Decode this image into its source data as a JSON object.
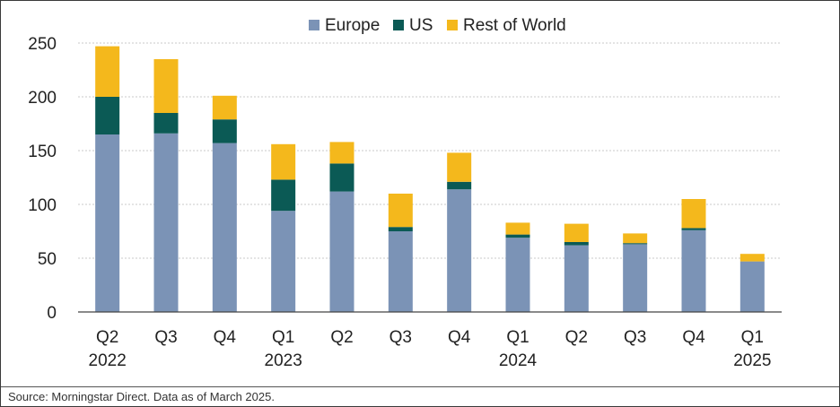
{
  "chart_data": {
    "type": "bar",
    "stacked": true,
    "categories": [
      [
        "Q2",
        "2022"
      ],
      [
        "Q3",
        ""
      ],
      [
        "Q4",
        ""
      ],
      [
        "Q1",
        "2023"
      ],
      [
        "Q2",
        ""
      ],
      [
        "Q3",
        ""
      ],
      [
        "Q4",
        ""
      ],
      [
        "Q1",
        "2024"
      ],
      [
        "Q2",
        ""
      ],
      [
        "Q3",
        ""
      ],
      [
        "Q4",
        ""
      ],
      [
        "Q1",
        "2025"
      ]
    ],
    "series": [
      {
        "name": "Europe",
        "color": "#7b93b6",
        "values": [
          165,
          166,
          157,
          94,
          112,
          75,
          114,
          69,
          62,
          63,
          76,
          47
        ]
      },
      {
        "name": "US",
        "color": "#0b5a55",
        "values": [
          35,
          19,
          22,
          29,
          26,
          4,
          7,
          3,
          3,
          1,
          2,
          0
        ]
      },
      {
        "name": "Rest of World",
        "color": "#f4b81c",
        "values": [
          47,
          50,
          22,
          33,
          20,
          31,
          27,
          11,
          17,
          9,
          27,
          7
        ]
      }
    ],
    "ylim": [
      0,
      250
    ],
    "yticks": [
      0,
      50,
      100,
      150,
      200,
      250
    ],
    "grid": true,
    "legend_position": "top-center"
  },
  "footer": {
    "source": "Source: Morningstar Direct. Data as of March 2025."
  }
}
